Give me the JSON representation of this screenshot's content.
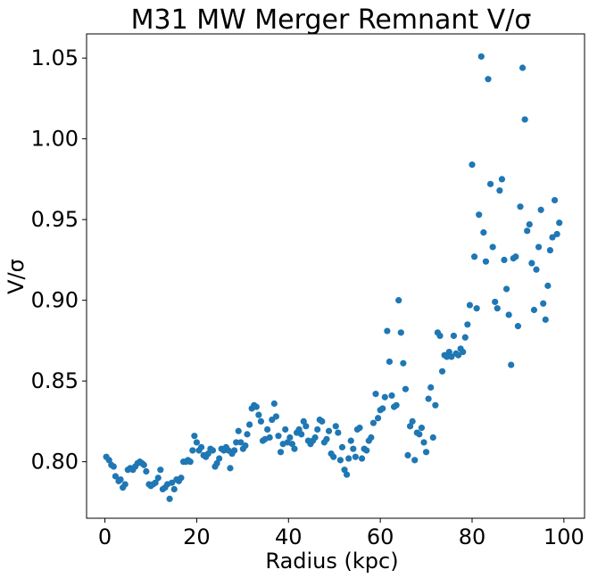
{
  "chart_data": {
    "type": "scatter",
    "title": "M31 MW Merger Remnant V/σ",
    "xlabel": "Radius (kpc)",
    "ylabel": "V/σ",
    "xlim": [
      -4,
      104.5
    ],
    "ylim": [
      0.765,
      1.065
    ],
    "xticks": [
      0,
      20,
      40,
      60,
      80,
      100
    ],
    "yticks": [
      0.8,
      0.85,
      0.9,
      0.95,
      1.0,
      1.05
    ],
    "xtick_labels": [
      "0",
      "20",
      "40",
      "60",
      "80",
      "100"
    ],
    "ytick_labels": [
      "0.80",
      "0.85",
      "0.90",
      "0.95",
      "1.00",
      "1.05"
    ],
    "grid": false,
    "marker_color": "#1f77b4",
    "points": [
      [
        0.3,
        0.803
      ],
      [
        0.9,
        0.801
      ],
      [
        1.4,
        0.798
      ],
      [
        1.9,
        0.797
      ],
      [
        2.3,
        0.791
      ],
      [
        3.0,
        0.788
      ],
      [
        3.4,
        0.789
      ],
      [
        3.9,
        0.784
      ],
      [
        4.4,
        0.786
      ],
      [
        5.0,
        0.795
      ],
      [
        5.5,
        0.796
      ],
      [
        6.1,
        0.795
      ],
      [
        6.6,
        0.797
      ],
      [
        7.1,
        0.799
      ],
      [
        7.6,
        0.8
      ],
      [
        8.1,
        0.799
      ],
      [
        8.5,
        0.798
      ],
      [
        9.0,
        0.794
      ],
      [
        9.6,
        0.786
      ],
      [
        10.0,
        0.785
      ],
      [
        10.5,
        0.786
      ],
      [
        11.0,
        0.787
      ],
      [
        11.6,
        0.79
      ],
      [
        12.1,
        0.795
      ],
      [
        12.6,
        0.783
      ],
      [
        13.1,
        0.784
      ],
      [
        13.6,
        0.786
      ],
      [
        14.1,
        0.777
      ],
      [
        14.6,
        0.787
      ],
      [
        15.1,
        0.783
      ],
      [
        15.6,
        0.789
      ],
      [
        16.1,
        0.788
      ],
      [
        16.6,
        0.79
      ],
      [
        17.1,
        0.8
      ],
      [
        17.6,
        0.8
      ],
      [
        18.1,
        0.801
      ],
      [
        18.6,
        0.8
      ],
      [
        19.1,
        0.807
      ],
      [
        19.5,
        0.816
      ],
      [
        20.0,
        0.812
      ],
      [
        20.5,
        0.807
      ],
      [
        21.0,
        0.809
      ],
      [
        21.5,
        0.804
      ],
      [
        22.0,
        0.803
      ],
      [
        22.5,
        0.805
      ],
      [
        23.0,
        0.808
      ],
      [
        23.5,
        0.807
      ],
      [
        24.0,
        0.797
      ],
      [
        24.4,
        0.799
      ],
      [
        24.9,
        0.802
      ],
      [
        25.4,
        0.808
      ],
      [
        25.9,
        0.807
      ],
      [
        26.4,
        0.809
      ],
      [
        26.9,
        0.807
      ],
      [
        27.3,
        0.796
      ],
      [
        27.7,
        0.805
      ],
      [
        28.2,
        0.807
      ],
      [
        28.6,
        0.812
      ],
      [
        29.1,
        0.819
      ],
      [
        29.6,
        0.812
      ],
      [
        30.1,
        0.808
      ],
      [
        30.6,
        0.81
      ],
      [
        31.0,
        0.817
      ],
      [
        31.5,
        0.823
      ],
      [
        32.0,
        0.833
      ],
      [
        32.5,
        0.835
      ],
      [
        33.0,
        0.834
      ],
      [
        33.5,
        0.829
      ],
      [
        34.0,
        0.825
      ],
      [
        34.4,
        0.813
      ],
      [
        34.9,
        0.814
      ],
      [
        35.4,
        0.82
      ],
      [
        35.9,
        0.815
      ],
      [
        36.4,
        0.826
      ],
      [
        36.9,
        0.836
      ],
      [
        37.3,
        0.828
      ],
      [
        37.8,
        0.816
      ],
      [
        38.3,
        0.806
      ],
      [
        38.8,
        0.811
      ],
      [
        39.3,
        0.82
      ],
      [
        39.8,
        0.812
      ],
      [
        40.3,
        0.815
      ],
      [
        40.8,
        0.811
      ],
      [
        41.3,
        0.808
      ],
      [
        41.8,
        0.818
      ],
      [
        42.3,
        0.82
      ],
      [
        42.8,
        0.817
      ],
      [
        43.3,
        0.825
      ],
      [
        43.8,
        0.822
      ],
      [
        44.3,
        0.813
      ],
      [
        44.8,
        0.811
      ],
      [
        45.3,
        0.813
      ],
      [
        45.8,
        0.815
      ],
      [
        46.3,
        0.82
      ],
      [
        46.8,
        0.826
      ],
      [
        47.3,
        0.825
      ],
      [
        47.8,
        0.812
      ],
      [
        48.3,
        0.814
      ],
      [
        48.8,
        0.819
      ],
      [
        49.3,
        0.805
      ],
      [
        49.8,
        0.803
      ],
      [
        50.3,
        0.822
      ],
      [
        50.8,
        0.818
      ],
      [
        51.3,
        0.801
      ],
      [
        51.7,
        0.809
      ],
      [
        52.2,
        0.795
      ],
      [
        52.7,
        0.792
      ],
      [
        53.1,
        0.802
      ],
      [
        53.6,
        0.813
      ],
      [
        54.1,
        0.808
      ],
      [
        54.6,
        0.803
      ],
      [
        55.0,
        0.82
      ],
      [
        55.5,
        0.821
      ],
      [
        56.0,
        0.802
      ],
      [
        56.5,
        0.808
      ],
      [
        57.0,
        0.807
      ],
      [
        57.5,
        0.813
      ],
      [
        58.0,
        0.815
      ],
      [
        58.5,
        0.824
      ],
      [
        59.0,
        0.842
      ],
      [
        59.5,
        0.827
      ],
      [
        60.0,
        0.832
      ],
      [
        60.5,
        0.833
      ],
      [
        61.0,
        0.84
      ],
      [
        61.5,
        0.881
      ],
      [
        62.0,
        0.862
      ],
      [
        62.5,
        0.841
      ],
      [
        63.0,
        0.834
      ],
      [
        63.5,
        0.835
      ],
      [
        64.0,
        0.9
      ],
      [
        64.5,
        0.88
      ],
      [
        65.0,
        0.861
      ],
      [
        65.5,
        0.845
      ],
      [
        66.0,
        0.804
      ],
      [
        66.5,
        0.822
      ],
      [
        67.0,
        0.825
      ],
      [
        67.5,
        0.801
      ],
      [
        68.0,
        0.818
      ],
      [
        68.5,
        0.817
      ],
      [
        69.0,
        0.821
      ],
      [
        69.5,
        0.812
      ],
      [
        70.0,
        0.806
      ],
      [
        70.5,
        0.839
      ],
      [
        71.0,
        0.846
      ],
      [
        71.5,
        0.815
      ],
      [
        72.0,
        0.835
      ],
      [
        72.5,
        0.88
      ],
      [
        73.0,
        0.878
      ],
      [
        73.5,
        0.856
      ],
      [
        74.0,
        0.866
      ],
      [
        74.5,
        0.865
      ],
      [
        75.0,
        0.868
      ],
      [
        75.5,
        0.865
      ],
      [
        76.0,
        0.878
      ],
      [
        76.5,
        0.867
      ],
      [
        77.0,
        0.866
      ],
      [
        77.5,
        0.87
      ],
      [
        78.0,
        0.868
      ],
      [
        78.5,
        0.877
      ],
      [
        79.0,
        0.885
      ],
      [
        79.5,
        0.897
      ],
      [
        80.0,
        0.984
      ],
      [
        80.5,
        0.927
      ],
      [
        81.0,
        0.895
      ],
      [
        81.5,
        0.953
      ],
      [
        82.0,
        1.051
      ],
      [
        82.5,
        0.942
      ],
      [
        83.0,
        0.924
      ],
      [
        83.5,
        1.037
      ],
      [
        84.0,
        0.972
      ],
      [
        84.5,
        0.933
      ],
      [
        85.0,
        0.899
      ],
      [
        85.5,
        0.895
      ],
      [
        86.0,
        0.968
      ],
      [
        86.5,
        0.975
      ],
      [
        87.0,
        0.925
      ],
      [
        87.5,
        0.907
      ],
      [
        88.0,
        0.891
      ],
      [
        88.5,
        0.86
      ],
      [
        89.0,
        0.926
      ],
      [
        89.5,
        0.927
      ],
      [
        90.0,
        0.884
      ],
      [
        90.5,
        0.958
      ],
      [
        91.0,
        1.044
      ],
      [
        91.5,
        1.012
      ],
      [
        92.0,
        0.943
      ],
      [
        92.5,
        0.947
      ],
      [
        93.0,
        0.923
      ],
      [
        93.5,
        0.894
      ],
      [
        94.0,
        0.919
      ],
      [
        94.5,
        0.933
      ],
      [
        95.0,
        0.956
      ],
      [
        95.5,
        0.898
      ],
      [
        96.0,
        0.888
      ],
      [
        96.5,
        0.909
      ],
      [
        97.0,
        0.931
      ],
      [
        97.5,
        0.939
      ],
      [
        98.0,
        0.962
      ],
      [
        98.5,
        0.941
      ],
      [
        99.0,
        0.948
      ]
    ]
  }
}
